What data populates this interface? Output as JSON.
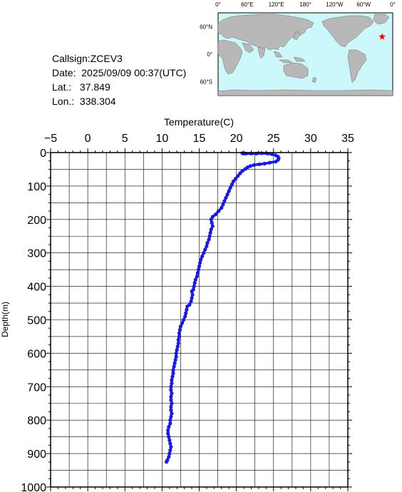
{
  "info": {
    "callsign_label": "Callsign:",
    "callsign": "ZCEV3",
    "date_label": "Date:",
    "date": "2025/09/09 00:37(UTC)",
    "lat_label": "Lat.:",
    "lat": "37.849",
    "lon_label": "Lon.:",
    "lon": "338.304"
  },
  "map": {
    "lon_labels": [
      "0°",
      "60°E",
      "120°E",
      "180°",
      "120°W",
      "60°W",
      "0°"
    ],
    "lat_labels": [
      "60°N",
      "0°",
      "60°S"
    ],
    "ocean_color": "#cdf8fb",
    "land_color": "#b8b8b8",
    "marker_color": "#ff0000",
    "marker_icon": "star-icon",
    "marker_lat": 37.849,
    "marker_lon": 338.304
  },
  "chart_data": {
    "type": "scatter",
    "title": "",
    "xlabel": "Temperature(C)",
    "ylabel": "Depth(m)",
    "xlim": [
      -5,
      35
    ],
    "ylim": [
      1000,
      0
    ],
    "x_ticks": [
      "-5",
      "0",
      "5",
      "10",
      "15",
      "20",
      "25",
      "30",
      "35"
    ],
    "y_ticks": [
      "0",
      "100",
      "200",
      "300",
      "400",
      "500",
      "600",
      "700",
      "800",
      "900",
      "1000"
    ],
    "grid": true,
    "series": [
      {
        "color": "#1a1ae6",
        "points": [
          [
            20.8,
            2
          ],
          [
            21.0,
            3
          ],
          [
            21.3,
            3
          ],
          [
            22.0,
            3
          ],
          [
            22.7,
            3
          ],
          [
            23.4,
            2
          ],
          [
            24.2,
            3
          ],
          [
            24.8,
            5
          ],
          [
            25.3,
            8
          ],
          [
            25.6,
            12
          ],
          [
            25.7,
            17
          ],
          [
            25.6,
            22
          ],
          [
            25.3,
            27
          ],
          [
            24.5,
            30
          ],
          [
            23.8,
            33
          ],
          [
            23.1,
            35
          ],
          [
            22.4,
            37
          ],
          [
            21.9,
            40
          ],
          [
            21.5,
            44
          ],
          [
            21.2,
            49
          ],
          [
            20.8,
            55
          ],
          [
            20.5,
            62
          ],
          [
            20.2,
            70
          ],
          [
            19.9,
            78
          ],
          [
            19.6,
            86
          ],
          [
            19.4,
            95
          ],
          [
            19.2,
            105
          ],
          [
            19.0,
            115
          ],
          [
            18.8,
            125
          ],
          [
            18.6,
            135
          ],
          [
            18.4,
            145
          ],
          [
            18.2,
            155
          ],
          [
            18.0,
            165
          ],
          [
            17.6,
            175
          ],
          [
            17.2,
            185
          ],
          [
            16.8,
            192
          ],
          [
            16.6,
            200
          ],
          [
            16.7,
            210
          ],
          [
            16.8,
            220
          ],
          [
            16.6,
            230
          ],
          [
            16.5,
            240
          ],
          [
            16.4,
            250
          ],
          [
            16.3,
            260
          ],
          [
            16.1,
            270
          ],
          [
            16.0,
            280
          ],
          [
            15.8,
            290
          ],
          [
            15.6,
            300
          ],
          [
            15.4,
            310
          ],
          [
            15.2,
            320
          ],
          [
            15.1,
            330
          ],
          [
            15.0,
            340
          ],
          [
            14.9,
            350
          ],
          [
            14.8,
            360
          ],
          [
            14.7,
            370
          ],
          [
            14.5,
            380
          ],
          [
            14.4,
            390
          ],
          [
            14.3,
            400
          ],
          [
            14.2,
            410
          ],
          [
            14.0,
            415
          ],
          [
            14.1,
            425
          ],
          [
            14.0,
            435
          ],
          [
            13.9,
            445
          ],
          [
            13.7,
            455
          ],
          [
            13.4,
            460
          ],
          [
            13.3,
            470
          ],
          [
            13.2,
            480
          ],
          [
            13.1,
            490
          ],
          [
            12.9,
            500
          ],
          [
            12.7,
            510
          ],
          [
            12.5,
            520
          ],
          [
            12.4,
            530
          ],
          [
            12.3,
            540
          ],
          [
            12.3,
            550
          ],
          [
            12.2,
            560
          ],
          [
            12.2,
            570
          ],
          [
            12.1,
            580
          ],
          [
            12.0,
            590
          ],
          [
            11.9,
            600
          ],
          [
            11.9,
            610
          ],
          [
            11.8,
            620
          ],
          [
            11.7,
            630
          ],
          [
            11.6,
            640
          ],
          [
            11.5,
            650
          ],
          [
            11.5,
            660
          ],
          [
            11.4,
            670
          ],
          [
            11.3,
            680
          ],
          [
            11.3,
            690
          ],
          [
            11.2,
            700
          ],
          [
            11.2,
            710
          ],
          [
            11.3,
            720
          ],
          [
            11.2,
            730
          ],
          [
            11.2,
            740
          ],
          [
            11.3,
            750
          ],
          [
            11.2,
            760
          ],
          [
            11.2,
            770
          ],
          [
            11.3,
            780
          ],
          [
            11.2,
            790
          ],
          [
            11.1,
            800
          ],
          [
            11.1,
            810
          ],
          [
            10.9,
            820
          ],
          [
            10.8,
            830
          ],
          [
            10.8,
            840
          ],
          [
            10.9,
            850
          ],
          [
            11.0,
            860
          ],
          [
            11.1,
            870
          ],
          [
            11.2,
            880
          ],
          [
            11.1,
            890
          ],
          [
            11.0,
            900
          ],
          [
            10.9,
            910
          ],
          [
            10.7,
            920
          ],
          [
            10.6,
            925
          ]
        ]
      }
    ]
  }
}
